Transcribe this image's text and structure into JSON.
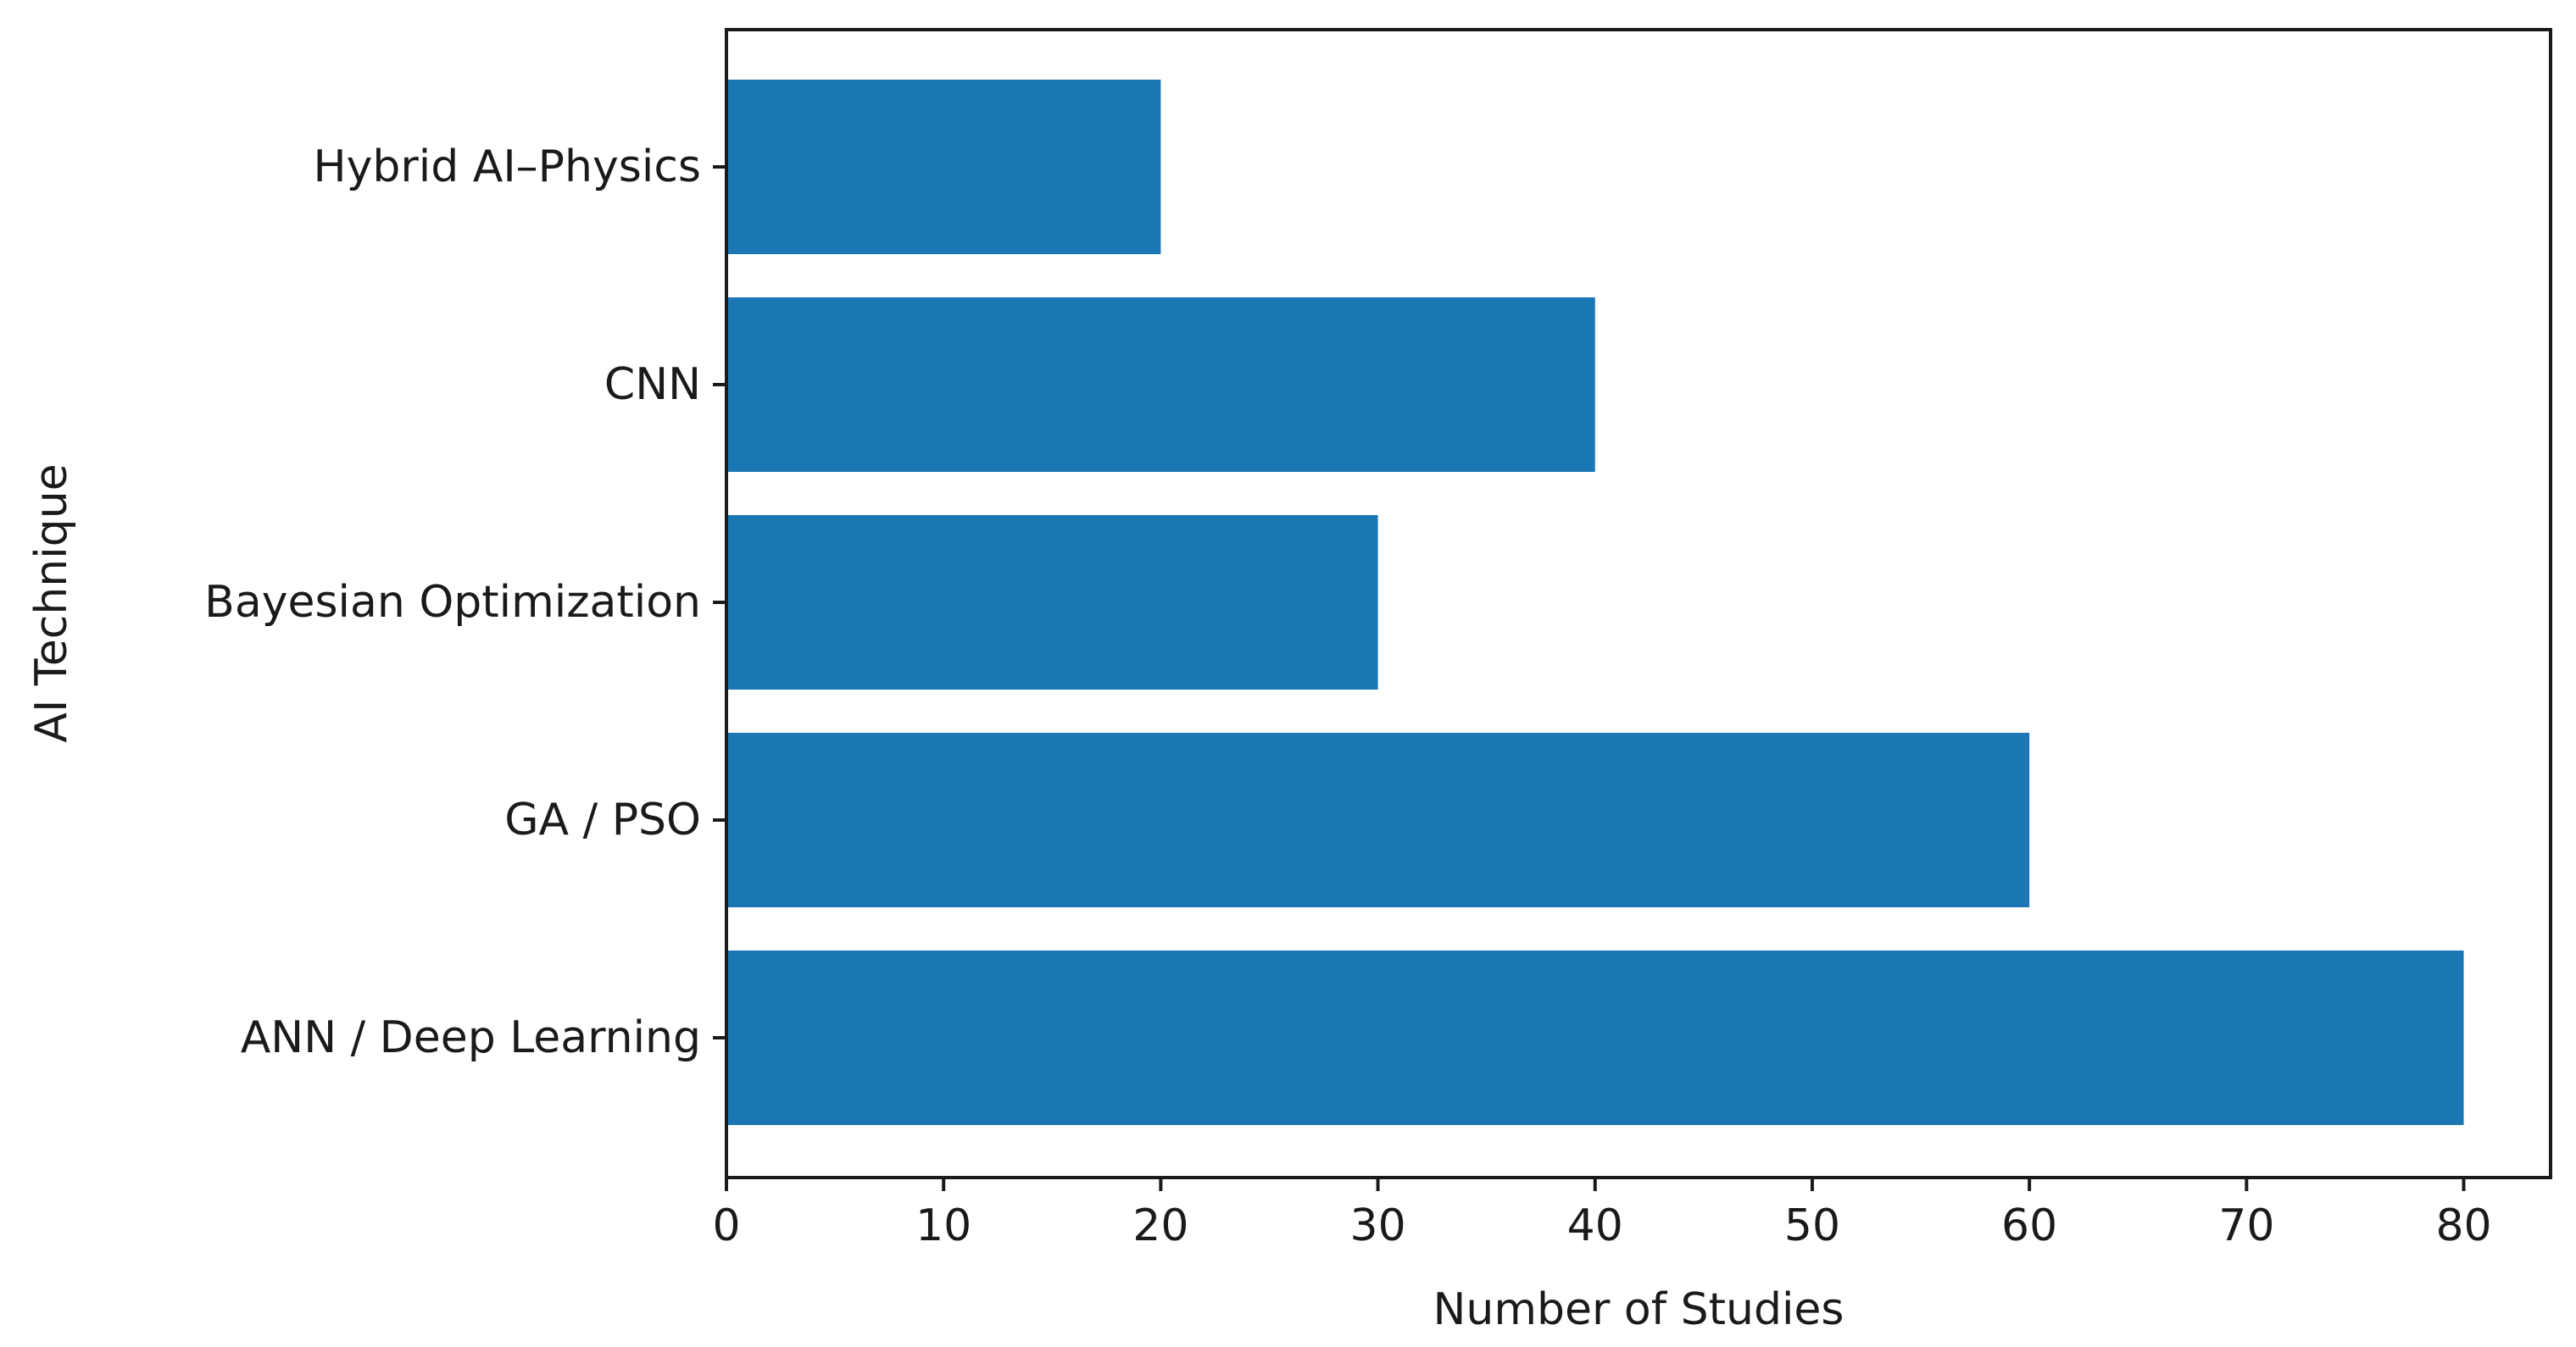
{
  "chart_data": {
    "type": "bar",
    "orientation": "horizontal",
    "title": "",
    "xlabel": "Number of Studies",
    "ylabel": "AI Technique",
    "categories": [
      "ANN / Deep Learning",
      "GA / PSO",
      "Bayesian Optimization",
      "CNN",
      "Hybrid AI–Physics"
    ],
    "values": [
      80,
      60,
      30,
      40,
      20
    ],
    "xlim": [
      0,
      84
    ],
    "xticks": [
      0,
      10,
      20,
      30,
      40,
      50,
      60,
      70,
      80
    ],
    "grid": false,
    "legend": "none",
    "bar_color": "#1b77b3"
  }
}
